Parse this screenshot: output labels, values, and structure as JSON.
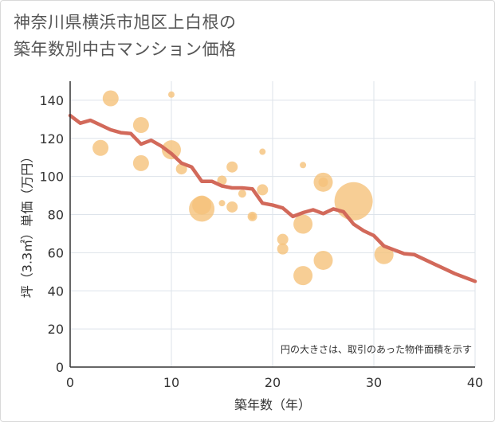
{
  "title_lines": [
    "神奈川県横浜市旭区上白根の",
    "築年数別中古マンション価格"
  ],
  "chart_data": {
    "type": "scatter",
    "title": "神奈川県横浜市旭区上白根の築年数別中古マンション価格",
    "xlabel": "築年数（年）",
    "ylabel": "坪（3.3㎡）単価（万円）",
    "xlim": [
      0,
      40
    ],
    "ylim": [
      0,
      150
    ],
    "xticks": [
      0,
      10,
      20,
      30,
      40
    ],
    "yticks": [
      0,
      20,
      40,
      60,
      80,
      100,
      120,
      140
    ],
    "grid": true,
    "note": "円の大きさは、取引のあった物件面積を示す",
    "colors": {
      "bubble": "#f5c27a",
      "line": "#d2695a",
      "grid": "#dde3ea"
    },
    "bubbles": [
      {
        "x": 3,
        "y": 115,
        "size": 10
      },
      {
        "x": 4,
        "y": 141,
        "size": 10
      },
      {
        "x": 7,
        "y": 127,
        "size": 10
      },
      {
        "x": 7,
        "y": 107,
        "size": 10
      },
      {
        "x": 10,
        "y": 143,
        "size": 4
      },
      {
        "x": 10,
        "y": 114,
        "size": 12
      },
      {
        "x": 11,
        "y": 104,
        "size": 7
      },
      {
        "x": 13,
        "y": 85,
        "size": 12
      },
      {
        "x": 13,
        "y": 83,
        "size": 16
      },
      {
        "x": 15,
        "y": 98,
        "size": 6
      },
      {
        "x": 15,
        "y": 86,
        "size": 4
      },
      {
        "x": 16,
        "y": 105,
        "size": 7
      },
      {
        "x": 16,
        "y": 84,
        "size": 7
      },
      {
        "x": 17,
        "y": 91,
        "size": 5
      },
      {
        "x": 18,
        "y": 79,
        "size": 6
      },
      {
        "x": 18,
        "y": 79,
        "size": 4
      },
      {
        "x": 19,
        "y": 113,
        "size": 4
      },
      {
        "x": 19,
        "y": 93,
        "size": 7
      },
      {
        "x": 21,
        "y": 67,
        "size": 7
      },
      {
        "x": 21,
        "y": 62,
        "size": 7
      },
      {
        "x": 23,
        "y": 106,
        "size": 4
      },
      {
        "x": 23,
        "y": 75,
        "size": 12
      },
      {
        "x": 23,
        "y": 48,
        "size": 12
      },
      {
        "x": 25,
        "y": 97,
        "size": 12
      },
      {
        "x": 25,
        "y": 97,
        "size": 6
      },
      {
        "x": 25,
        "y": 56,
        "size": 12
      },
      {
        "x": 28,
        "y": 87,
        "size": 24
      },
      {
        "x": 31,
        "y": 59,
        "size": 12
      }
    ],
    "trend": {
      "x": [
        0,
        1,
        2,
        3,
        4,
        5,
        6,
        7,
        8,
        9,
        10,
        11,
        12,
        13,
        14,
        15,
        16,
        17,
        18,
        19,
        20,
        21,
        22,
        23,
        24,
        25,
        26,
        27,
        28,
        29,
        30,
        31,
        32,
        33,
        34,
        35,
        36,
        37,
        38,
        39,
        40
      ],
      "y": [
        132,
        128,
        129.5,
        127,
        124.5,
        123,
        122.5,
        117,
        119,
        116,
        112,
        107,
        105,
        97.5,
        97.5,
        95,
        94,
        94,
        93.5,
        86,
        85,
        83.5,
        79,
        81,
        82.5,
        80.5,
        83,
        81.5,
        75,
        71.5,
        69,
        63.5,
        61.5,
        59.5,
        59,
        56.5,
        54,
        51.5,
        49,
        47,
        45
      ]
    }
  }
}
